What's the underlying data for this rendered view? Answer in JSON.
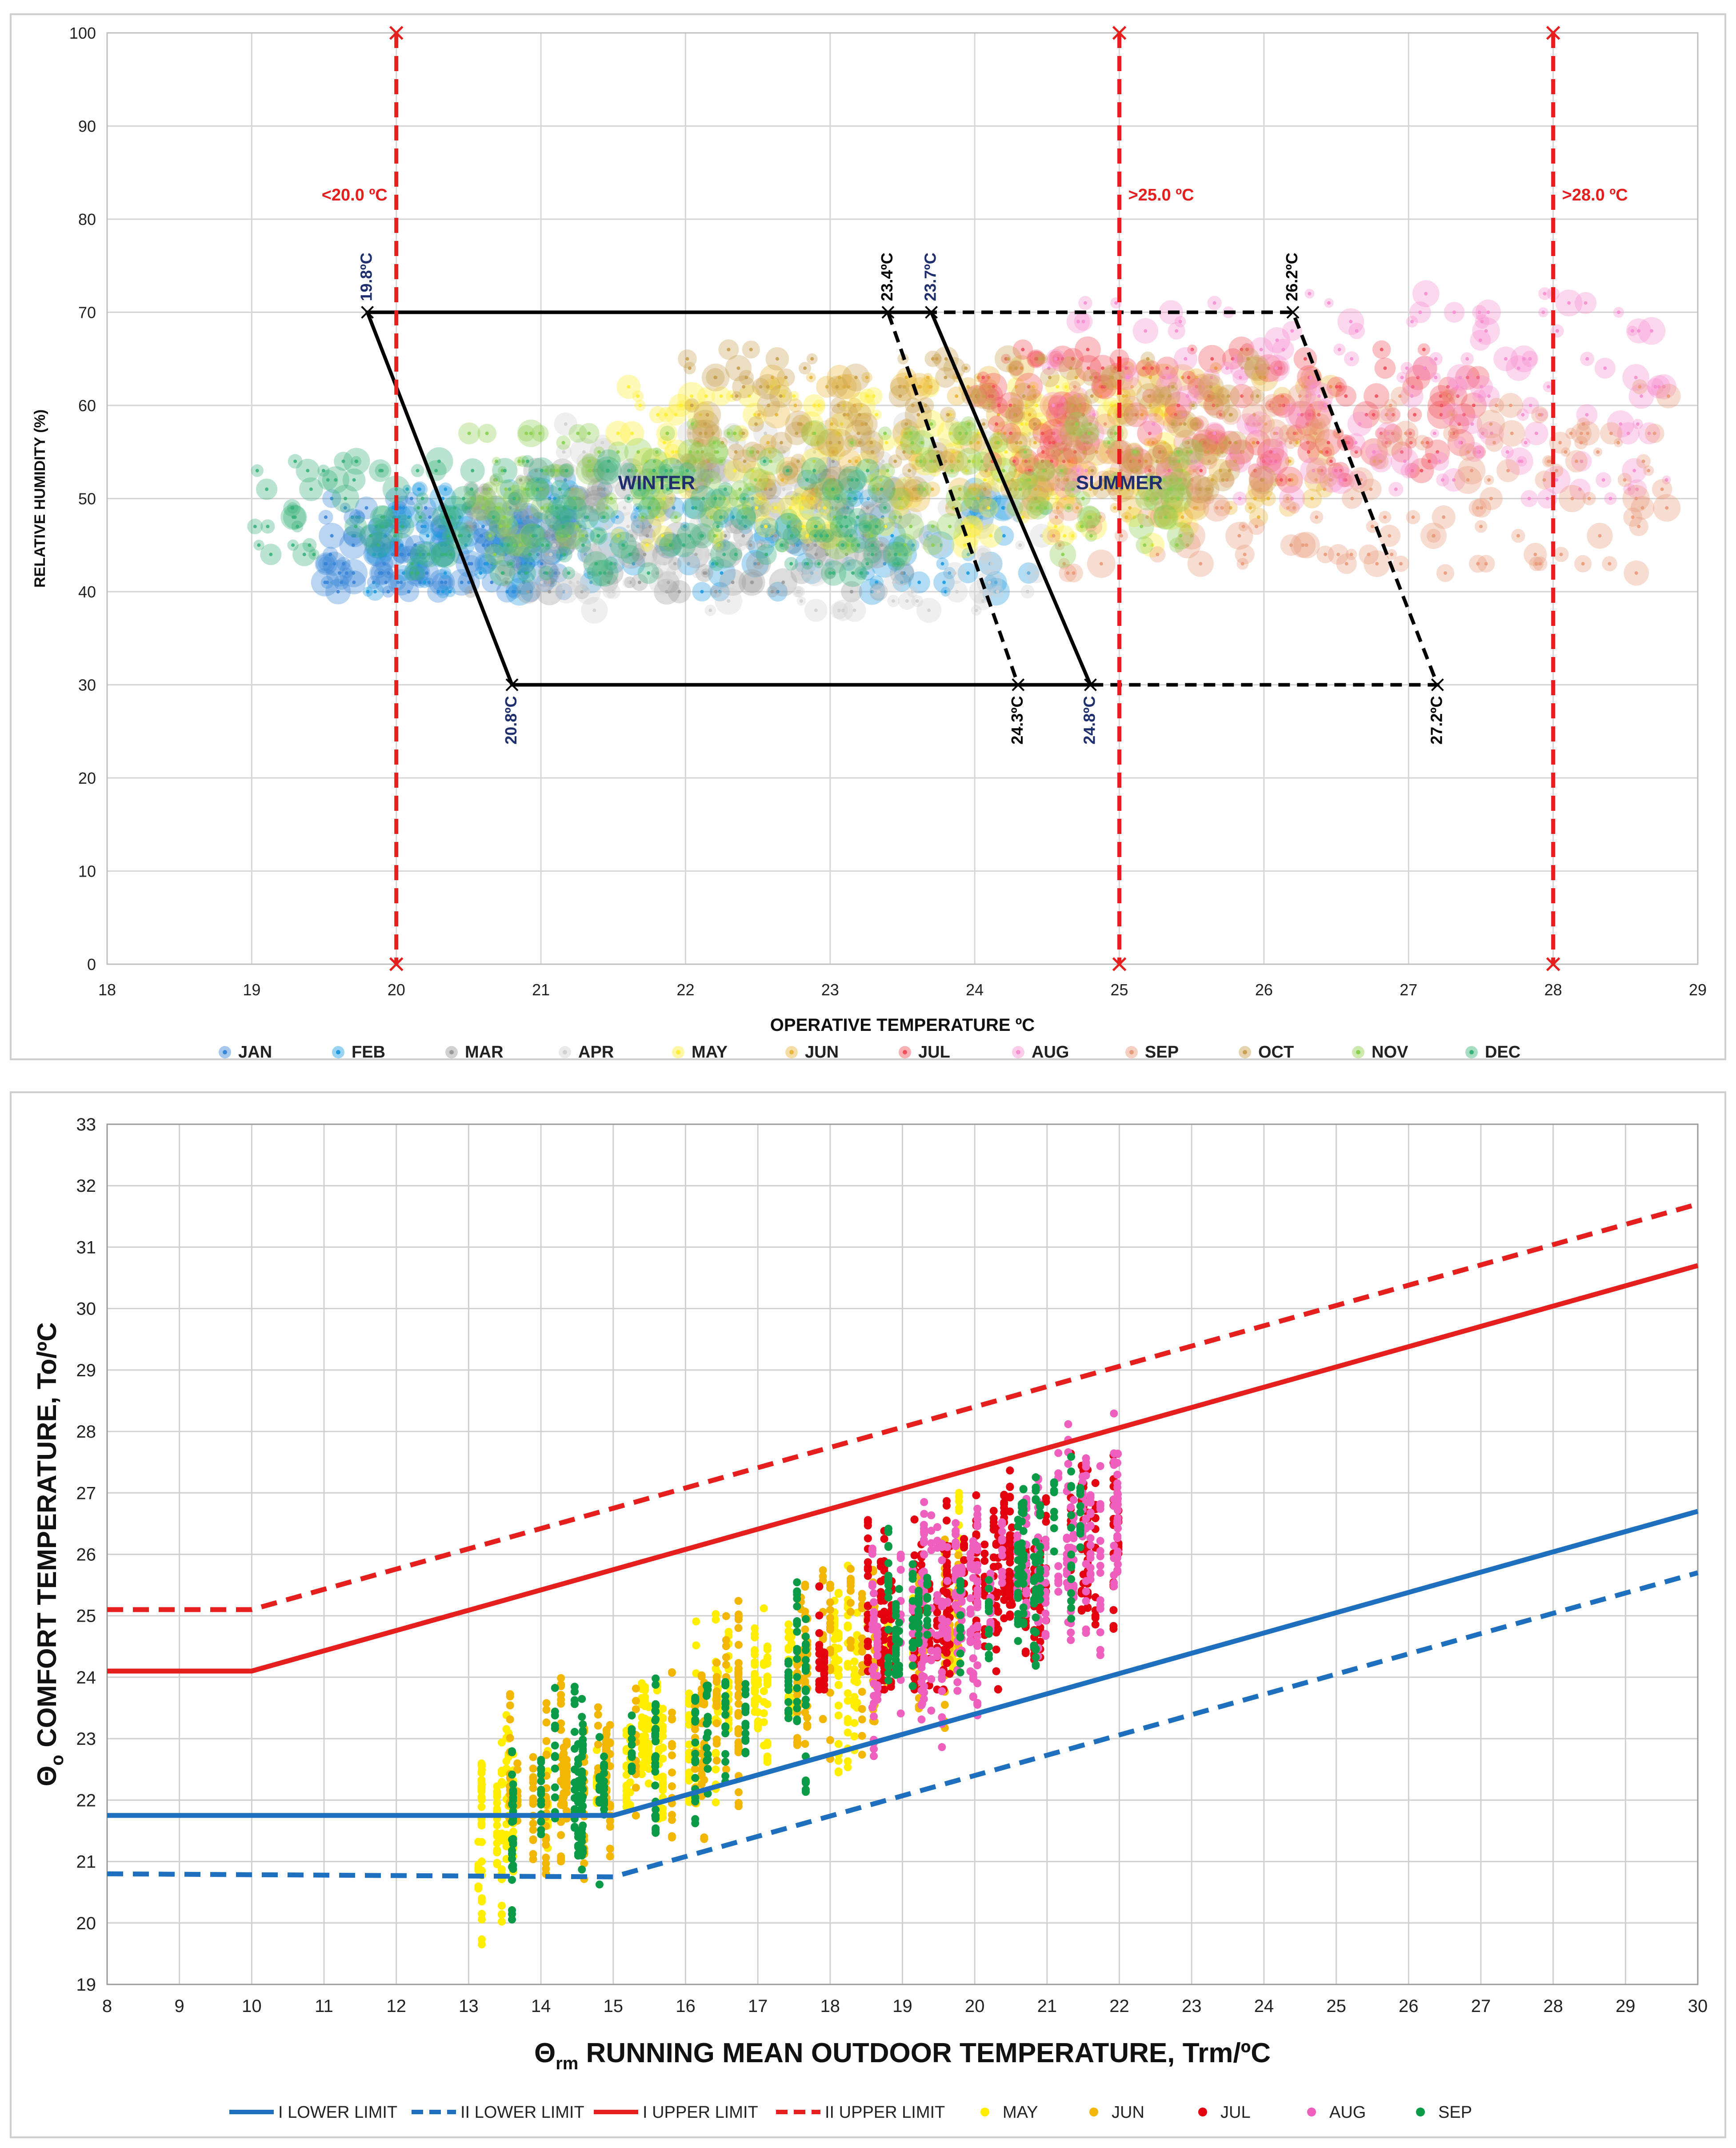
{
  "chart_data": [
    {
      "type": "scatter",
      "title": "",
      "xlabel": "OPERATIVE TEMPERATURE  ºC",
      "ylabel": "RELATIVE HUMIDITY (%)",
      "xlim": [
        18,
        29
      ],
      "ylim": [
        0,
        100
      ],
      "xticks": [
        "18",
        "19",
        "20",
        "21",
        "22",
        "23",
        "24",
        "25",
        "26",
        "27",
        "28",
        "29"
      ],
      "yticks": [
        "0",
        "10",
        "20",
        "30",
        "40",
        "50",
        "60",
        "70",
        "80",
        "90",
        "100"
      ],
      "grid": true,
      "legend_position": "bottom",
      "series": [
        {
          "name": "JAN",
          "color": "#3a86d8",
          "cluster": {
            "x": [
              19.5,
              21.2
            ],
            "y": [
              40,
              50
            ]
          }
        },
        {
          "name": "FEB",
          "color": "#1f9be0",
          "cluster": {
            "x": [
              19.8,
              24.5
            ],
            "y": [
              40,
              52
            ]
          }
        },
        {
          "name": "MAR",
          "color": "#9a9a9a",
          "cluster": {
            "x": [
              20.5,
              23.5
            ],
            "y": [
              40,
              54
            ]
          }
        },
        {
          "name": "APR",
          "color": "#d0d0d0",
          "cluster": {
            "x": [
              21,
              24.5
            ],
            "y": [
              38,
              58
            ]
          }
        },
        {
          "name": "MAY",
          "color": "#ffee33",
          "cluster": {
            "x": [
              21.5,
              25.5
            ],
            "y": [
              45,
              62
            ]
          }
        },
        {
          "name": "JUN",
          "color": "#e8b63a",
          "cluster": {
            "x": [
              22.5,
              26.5
            ],
            "y": [
              48,
              64
            ]
          }
        },
        {
          "name": "JUL",
          "color": "#f0505a",
          "cluster": {
            "x": [
              24,
              27.5
            ],
            "y": [
              52,
              66
            ]
          }
        },
        {
          "name": "AUG",
          "color": "#f58fd0",
          "cluster": {
            "x": [
              24.5,
              28.8
            ],
            "y": [
              50,
              72
            ]
          }
        },
        {
          "name": "SEP",
          "color": "#e99a7a",
          "cluster": {
            "x": [
              24.5,
              28.8
            ],
            "y": [
              42,
              62
            ]
          }
        },
        {
          "name": "OCT",
          "color": "#c8a050",
          "cluster": {
            "x": [
              22,
              26
            ],
            "y": [
              50,
              66
            ]
          }
        },
        {
          "name": "NOV",
          "color": "#8dcf50",
          "cluster": {
            "x": [
              20.5,
              25.5
            ],
            "y": [
              44,
              58
            ]
          }
        },
        {
          "name": "DEC",
          "color": "#39b37a",
          "cluster": {
            "x": [
              19,
              23.5
            ],
            "y": [
              42,
              54
            ]
          }
        }
      ],
      "vlines": [
        {
          "x": 20,
          "label": "<20.0 ºC",
          "color": "#e51e1e"
        },
        {
          "x": 25,
          "label": ">25.0 ºC",
          "color": "#e51e1e"
        },
        {
          "x": 28,
          "label": ">28.0 ºC",
          "color": "#e51e1e"
        }
      ],
      "zones": [
        {
          "name": "WINTER",
          "style": "solid",
          "points": [
            [
              19.8,
              70
            ],
            [
              23.7,
              70
            ],
            [
              24.8,
              30
            ],
            [
              20.8,
              30
            ]
          ]
        },
        {
          "name": "SUMMER",
          "style": "dashed",
          "points": [
            [
              23.4,
              70
            ],
            [
              26.2,
              70
            ],
            [
              27.2,
              30
            ],
            [
              24.3,
              30
            ]
          ]
        }
      ],
      "corner_labels": [
        {
          "x": 19.8,
          "y": 70,
          "text": "19.8ºC",
          "color": "#1f2f6e"
        },
        {
          "x": 20.8,
          "y": 30,
          "text": "20.8ºC",
          "color": "#1f2f6e"
        },
        {
          "x": 23.4,
          "y": 70,
          "text": "23.4ºC",
          "color": "#000000"
        },
        {
          "x": 23.7,
          "y": 70,
          "text": "23.7ºC",
          "color": "#1f2f6e"
        },
        {
          "x": 24.3,
          "y": 30,
          "text": "24.3ºC",
          "color": "#000000"
        },
        {
          "x": 24.8,
          "y": 30,
          "text": "24.8ºC",
          "color": "#1f2f6e"
        },
        {
          "x": 26.2,
          "y": 70,
          "text": "26.2ºC",
          "color": "#000000"
        },
        {
          "x": 27.2,
          "y": 30,
          "text": "27.2ºC",
          "color": "#000000"
        }
      ],
      "zone_labels": [
        {
          "text": "WINTER",
          "x": 21.8,
          "y": 51,
          "color": "#1f2f6e"
        },
        {
          "text": "SUMMER",
          "x": 25,
          "y": 51,
          "color": "#1f2f6e"
        }
      ]
    },
    {
      "type": "scatter",
      "title": "",
      "xlabel": "Θrm RUNNING MEAN OUTDOOR TEMPERATURE, Trm/ºC",
      "xlabel_parts": [
        "Θ",
        "rm",
        " RUNNING MEAN OUTDOOR TEMPERATURE, Trm/ºC"
      ],
      "ylabel": "Θo COMFORT TEMPERATURE, To/ºC",
      "ylabel_parts": [
        "Θ",
        "o",
        " COMFORT TEMPERATURE, To/ºC"
      ],
      "xlim": [
        8,
        30
      ],
      "ylim": [
        19,
        33
      ],
      "xticks": [
        "8",
        "9",
        "10",
        "11",
        "12",
        "13",
        "14",
        "15",
        "16",
        "17",
        "18",
        "19",
        "20",
        "21",
        "22",
        "23",
        "24",
        "25",
        "26",
        "27",
        "28",
        "29",
        "30"
      ],
      "yticks": [
        "19",
        "20",
        "21",
        "22",
        "23",
        "24",
        "25",
        "26",
        "27",
        "28",
        "29",
        "30",
        "31",
        "32",
        "33"
      ],
      "grid": true,
      "legend_position": "bottom",
      "lines": [
        {
          "name": "I LOWER LIMIT",
          "color": "#1f6fbf",
          "style": "solid",
          "points": [
            [
              8,
              21.75
            ],
            [
              15,
              21.75
            ],
            [
              30,
              26.7
            ]
          ]
        },
        {
          "name": "II LOWER LIMIT",
          "color": "#1f6fbf",
          "style": "dashed",
          "points": [
            [
              8,
              20.8
            ],
            [
              15,
              20.75
            ],
            [
              30,
              25.7
            ]
          ]
        },
        {
          "name": "I UPPER LIMIT",
          "color": "#e51e1e",
          "style": "solid",
          "points": [
            [
              8,
              24.1
            ],
            [
              10,
              24.1
            ],
            [
              30,
              30.7
            ]
          ]
        },
        {
          "name": "II UPPER LIMIT",
          "color": "#e51e1e",
          "style": "dashed",
          "points": [
            [
              8,
              25.1
            ],
            [
              10,
              25.1
            ],
            [
              30,
              31.7
            ]
          ]
        }
      ],
      "series": [
        {
          "name": "MAY",
          "color": "#ffee00",
          "cluster": {
            "x": [
              13,
              20
            ],
            "y": [
              19.2,
              27
            ]
          }
        },
        {
          "name": "JUN",
          "color": "#f2b705",
          "cluster": {
            "x": [
              13.5,
              19.8
            ],
            "y": [
              20,
              27
            ]
          }
        },
        {
          "name": "JUL",
          "color": "#e3000f",
          "cluster": {
            "x": [
              17.8,
              22
            ],
            "y": [
              23.8,
              28.1
            ]
          }
        },
        {
          "name": "AUG",
          "color": "#ee5fbe",
          "cluster": {
            "x": [
              18.5,
              22
            ],
            "y": [
              20.4,
              29
            ]
          }
        },
        {
          "name": "SEP",
          "color": "#0b9a46",
          "cluster": {
            "x": [
              13.5,
              21.8
            ],
            "y": [
              19.6,
              29.4
            ]
          }
        }
      ]
    }
  ]
}
